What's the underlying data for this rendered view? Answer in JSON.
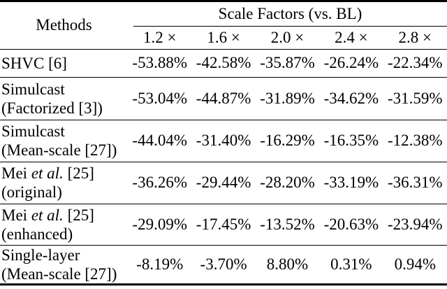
{
  "colors": {
    "text": "#000000",
    "background": "#ffffff",
    "rule": "#000000"
  },
  "table": {
    "header": {
      "methods_label": "Methods",
      "group_label": "Scale Factors (vs. BL)",
      "scale_labels": [
        "1.2 ×",
        "1.6 ×",
        "2.0 ×",
        "2.4 ×",
        "2.8 ×"
      ]
    },
    "rows": [
      {
        "method_line1_pre": "SHVC [6]",
        "method_line1_italic": "",
        "method_line1_post": "",
        "method_line2": "",
        "values": [
          "-53.88%",
          "-42.58%",
          "-35.87%",
          "-26.24%",
          "-22.34%"
        ]
      },
      {
        "method_line1_pre": "Simulcast",
        "method_line1_italic": "",
        "method_line1_post": "",
        "method_line2": "(Factorized [3])",
        "values": [
          "-53.04%",
          "-44.87%",
          "-31.89%",
          "-34.62%",
          "-31.59%"
        ]
      },
      {
        "method_line1_pre": "Simulcast",
        "method_line1_italic": "",
        "method_line1_post": "",
        "method_line2": "(Mean-scale [27])",
        "values": [
          "-44.04%",
          "-31.40%",
          "-16.29%",
          "-16.35%",
          "-12.38%"
        ]
      },
      {
        "method_line1_pre": "Mei ",
        "method_line1_italic": "et al.",
        "method_line1_post": " [25]",
        "method_line2": "(original)",
        "values": [
          "-36.26%",
          "-29.44%",
          "-28.20%",
          "-33.19%",
          "-36.31%"
        ]
      },
      {
        "method_line1_pre": "Mei ",
        "method_line1_italic": "et al.",
        "method_line1_post": " [25]",
        "method_line2": "(enhanced)",
        "values": [
          "-29.09%",
          "-17.45%",
          "-13.52%",
          "-20.63%",
          "-23.94%"
        ]
      },
      {
        "method_line1_pre": "Single-layer",
        "method_line1_italic": "",
        "method_line1_post": "",
        "method_line2": "(Mean-scale [27])",
        "values": [
          "-8.19%",
          "-3.70%",
          "8.80%",
          "0.31%",
          "0.94%"
        ]
      }
    ]
  }
}
